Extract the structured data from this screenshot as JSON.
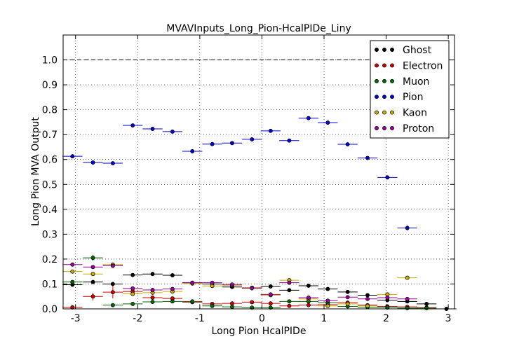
{
  "chart_data": {
    "type": "scatter",
    "title": "MVAVInputs_Long_Pion-HcalPIDe_Liny",
    "xlabel": "Long Pion HcalPIDe",
    "ylabel": "Long Pion MVA Output",
    "xlim": [
      -3.2,
      3.1
    ],
    "ylim": [
      0.0,
      1.1
    ],
    "x_ticks": [
      -3,
      -2,
      -1,
      0,
      1,
      2,
      3
    ],
    "y_ticks": [
      0.0,
      0.1,
      0.2,
      0.3,
      0.4,
      0.5,
      0.6,
      0.7,
      0.8,
      0.9,
      1.0
    ],
    "reference_line": 1.0,
    "grid": true,
    "legend_position": "top-right",
    "bin_half_width": 0.16,
    "series": [
      {
        "name": "Ghost",
        "color": "#000000",
        "points": [
          [
            -3.05,
            0.097,
            0.003
          ],
          [
            -2.72,
            0.108,
            0.003
          ],
          [
            -2.4,
            0.1,
            0.003
          ],
          [
            -2.08,
            0.136,
            0.003
          ],
          [
            -1.76,
            0.14,
            0.003
          ],
          [
            -1.44,
            0.135,
            0.003
          ],
          [
            -1.12,
            0.105,
            0.003
          ],
          [
            -0.8,
            0.1,
            0.003
          ],
          [
            -0.48,
            0.088,
            0.003
          ],
          [
            -0.16,
            0.085,
            0.003
          ],
          [
            0.14,
            0.09,
            0.003
          ],
          [
            0.44,
            0.075,
            0.003
          ],
          [
            0.75,
            0.093,
            0.003
          ],
          [
            1.06,
            0.08,
            0.003
          ],
          [
            1.38,
            0.068,
            0.003
          ],
          [
            1.7,
            0.055,
            0.003
          ],
          [
            2.02,
            0.035,
            0.003
          ],
          [
            2.34,
            0.03,
            0.003
          ],
          [
            2.65,
            0.02,
            0.003
          ],
          [
            2.97,
            0.0,
            0.003
          ]
        ]
      },
      {
        "name": "Electron",
        "color": "#cc0000",
        "points": [
          [
            -3.05,
            0.006,
            0.003
          ],
          [
            -2.72,
            0.05,
            0.015
          ],
          [
            -2.4,
            0.067,
            0.025
          ],
          [
            -2.08,
            0.07,
            0.01
          ],
          [
            -1.76,
            0.045,
            0.005
          ],
          [
            -1.44,
            0.042,
            0.005
          ],
          [
            -1.12,
            0.027,
            0.004
          ],
          [
            -0.8,
            0.02,
            0.004
          ],
          [
            -0.48,
            0.022,
            0.004
          ],
          [
            -0.16,
            0.027,
            0.004
          ],
          [
            0.14,
            0.022,
            0.003
          ],
          [
            0.44,
            0.012,
            0.003
          ],
          [
            0.75,
            0.015,
            0.003
          ],
          [
            1.06,
            0.017,
            0.003
          ],
          [
            1.38,
            0.025,
            0.003
          ],
          [
            1.7,
            0.015,
            0.003
          ],
          [
            2.02,
            0.01,
            0.003
          ],
          [
            2.34,
            0.008,
            0.003
          ],
          [
            2.65,
            0.005,
            0.003
          ]
        ]
      },
      {
        "name": "Muon",
        "color": "#006600",
        "points": [
          [
            -3.05,
            0.108,
            0.005
          ],
          [
            -2.72,
            0.205,
            0.012
          ],
          [
            -2.4,
            0.015,
            0.003
          ],
          [
            -2.08,
            0.02,
            0.003
          ],
          [
            -1.76,
            0.028,
            0.003
          ],
          [
            -1.44,
            0.03,
            0.003
          ],
          [
            -1.12,
            0.03,
            0.003
          ],
          [
            -0.8,
            0.012,
            0.003
          ],
          [
            -0.48,
            0.008,
            0.003
          ],
          [
            -0.16,
            0.005,
            0.003
          ],
          [
            0.14,
            0.005,
            0.003
          ],
          [
            0.44,
            0.03,
            0.003
          ],
          [
            0.75,
            0.03,
            0.003
          ],
          [
            1.06,
            0.025,
            0.003
          ],
          [
            1.38,
            0.01,
            0.003
          ],
          [
            1.7,
            0.007,
            0.003
          ],
          [
            2.02,
            0.005,
            0.003
          ],
          [
            2.34,
            0.003,
            0.003
          ],
          [
            2.65,
            0.003,
            0.003
          ]
        ]
      },
      {
        "name": "Pion",
        "color": "#0000cc",
        "points": [
          [
            -3.05,
            0.613,
            0.004
          ],
          [
            -2.72,
            0.588,
            0.004
          ],
          [
            -2.4,
            0.585,
            0.004
          ],
          [
            -2.08,
            0.737,
            0.004
          ],
          [
            -1.76,
            0.723,
            0.004
          ],
          [
            -1.44,
            0.712,
            0.004
          ],
          [
            -1.12,
            0.633,
            0.004
          ],
          [
            -0.8,
            0.662,
            0.004
          ],
          [
            -0.48,
            0.666,
            0.004
          ],
          [
            -0.16,
            0.681,
            0.004
          ],
          [
            0.14,
            0.715,
            0.004
          ],
          [
            0.44,
            0.676,
            0.004
          ],
          [
            0.75,
            0.766,
            0.004
          ],
          [
            1.06,
            0.748,
            0.004
          ],
          [
            1.38,
            0.661,
            0.004
          ],
          [
            1.7,
            0.606,
            0.004
          ],
          [
            2.02,
            0.528,
            0.006
          ],
          [
            2.34,
            0.325,
            0.01
          ]
        ]
      },
      {
        "name": "Kaon",
        "color": "#ccaa00",
        "points": [
          [
            -3.05,
            0.15,
            0.004
          ],
          [
            -2.72,
            0.14,
            0.004
          ],
          [
            -2.4,
            0.178,
            0.004
          ],
          [
            -2.08,
            0.06,
            0.004
          ],
          [
            -1.76,
            0.065,
            0.004
          ],
          [
            -1.44,
            0.07,
            0.004
          ],
          [
            -1.12,
            0.102,
            0.004
          ],
          [
            -0.8,
            0.092,
            0.004
          ],
          [
            -0.48,
            0.095,
            0.004
          ],
          [
            -0.16,
            0.085,
            0.004
          ],
          [
            0.14,
            0.055,
            0.004
          ],
          [
            0.44,
            0.115,
            0.004
          ],
          [
            0.75,
            0.04,
            0.004
          ],
          [
            1.06,
            0.012,
            0.004
          ],
          [
            1.38,
            0.02,
            0.004
          ],
          [
            1.7,
            0.012,
            0.004
          ],
          [
            2.02,
            0.058,
            0.004
          ],
          [
            2.34,
            0.125,
            0.008
          ]
        ]
      },
      {
        "name": "Proton",
        "color": "#990099",
        "points": [
          [
            -3.05,
            0.178,
            0.004
          ],
          [
            -2.72,
            0.168,
            0.004
          ],
          [
            -2.4,
            0.173,
            0.004
          ],
          [
            -2.08,
            0.082,
            0.004
          ],
          [
            -1.76,
            0.076,
            0.004
          ],
          [
            -1.44,
            0.08,
            0.004
          ],
          [
            -1.12,
            0.105,
            0.004
          ],
          [
            -0.8,
            0.105,
            0.004
          ],
          [
            -0.48,
            0.098,
            0.004
          ],
          [
            -0.16,
            0.083,
            0.004
          ],
          [
            0.14,
            0.058,
            0.004
          ],
          [
            0.44,
            0.105,
            0.004
          ],
          [
            0.75,
            0.045,
            0.004
          ],
          [
            1.06,
            0.033,
            0.004
          ],
          [
            1.38,
            0.047,
            0.004
          ],
          [
            1.7,
            0.04,
            0.004
          ],
          [
            2.02,
            0.045,
            0.004
          ],
          [
            2.34,
            0.04,
            0.004
          ]
        ]
      }
    ]
  }
}
